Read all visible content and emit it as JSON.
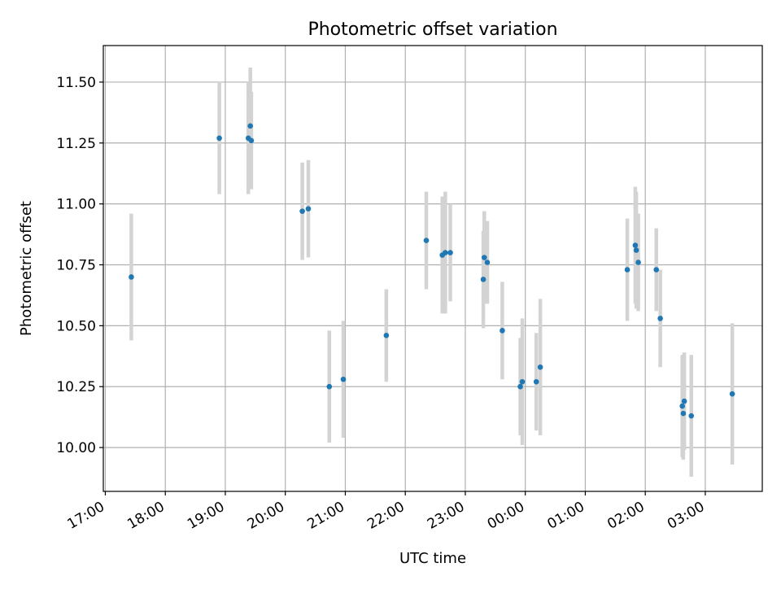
{
  "chart_data": {
    "type": "scatter",
    "title": "Photometric offset variation",
    "xlabel": "UTC time",
    "ylabel": "Photometric offset",
    "x_ticks": [
      "17:00",
      "18:00",
      "19:00",
      "20:00",
      "21:00",
      "22:00",
      "23:00",
      "00:00",
      "01:00",
      "02:00",
      "03:00"
    ],
    "y_ticks": [
      "10.00",
      "10.25",
      "10.50",
      "10.75",
      "11.00",
      "11.25",
      "11.50"
    ],
    "x_tick_hours": [
      17,
      18,
      19,
      20,
      21,
      22,
      23,
      24,
      25,
      26,
      27
    ],
    "y_tick_values": [
      10.0,
      10.25,
      10.5,
      10.75,
      11.0,
      11.25,
      11.5
    ],
    "xlim": [
      "16:58",
      "03:57"
    ],
    "ylim": [
      9.82,
      11.65
    ],
    "grid": true,
    "marker_color": "#1f77b4",
    "errorbar_color": "#d3d3d3",
    "points": [
      {
        "x": "17:26",
        "y": 10.7,
        "err": 0.26
      },
      {
        "x": "18:54",
        "y": 11.27,
        "err": 0.23
      },
      {
        "x": "19:23",
        "y": 11.27,
        "err": 0.23
      },
      {
        "x": "19:25",
        "y": 11.32,
        "err": 0.24
      },
      {
        "x": "19:26",
        "y": 11.26,
        "err": 0.2
      },
      {
        "x": "20:17",
        "y": 10.97,
        "err": 0.2
      },
      {
        "x": "20:23",
        "y": 10.98,
        "err": 0.2
      },
      {
        "x": "20:44",
        "y": 10.25,
        "err": 0.23
      },
      {
        "x": "20:58",
        "y": 10.28,
        "err": 0.24
      },
      {
        "x": "21:41",
        "y": 10.46,
        "err": 0.19
      },
      {
        "x": "22:21",
        "y": 10.85,
        "err": 0.2
      },
      {
        "x": "22:37",
        "y": 10.79,
        "err": 0.24
      },
      {
        "x": "22:40",
        "y": 10.8,
        "err": 0.25
      },
      {
        "x": "22:45",
        "y": 10.8,
        "err": 0.2
      },
      {
        "x": "23:18",
        "y": 10.69,
        "err": 0.2
      },
      {
        "x": "23:19",
        "y": 10.78,
        "err": 0.19
      },
      {
        "x": "23:22",
        "y": 10.76,
        "err": 0.17
      },
      {
        "x": "23:37",
        "y": 10.48,
        "err": 0.2
      },
      {
        "x": "23:55",
        "y": 10.25,
        "err": 0.2
      },
      {
        "x": "23:57",
        "y": 10.27,
        "err": 0.26
      },
      {
        "x": "00:11",
        "y": 10.27,
        "err": 0.2
      },
      {
        "x": "00:15",
        "y": 10.33,
        "err": 0.28
      },
      {
        "x": "01:42",
        "y": 10.73,
        "err": 0.21
      },
      {
        "x": "01:50",
        "y": 10.83,
        "err": 0.24
      },
      {
        "x": "01:51",
        "y": 10.81,
        "err": 0.24
      },
      {
        "x": "01:53",
        "y": 10.76,
        "err": 0.2
      },
      {
        "x": "02:11",
        "y": 10.73,
        "err": 0.17
      },
      {
        "x": "02:15",
        "y": 10.53,
        "err": 0.2
      },
      {
        "x": "02:37",
        "y": 10.17,
        "err": 0.21
      },
      {
        "x": "02:38",
        "y": 10.14,
        "err": 0.19
      },
      {
        "x": "02:39",
        "y": 10.19,
        "err": 0.2
      },
      {
        "x": "02:46",
        "y": 10.13,
        "err": 0.25
      },
      {
        "x": "03:27",
        "y": 10.22,
        "err": 0.29
      }
    ]
  }
}
